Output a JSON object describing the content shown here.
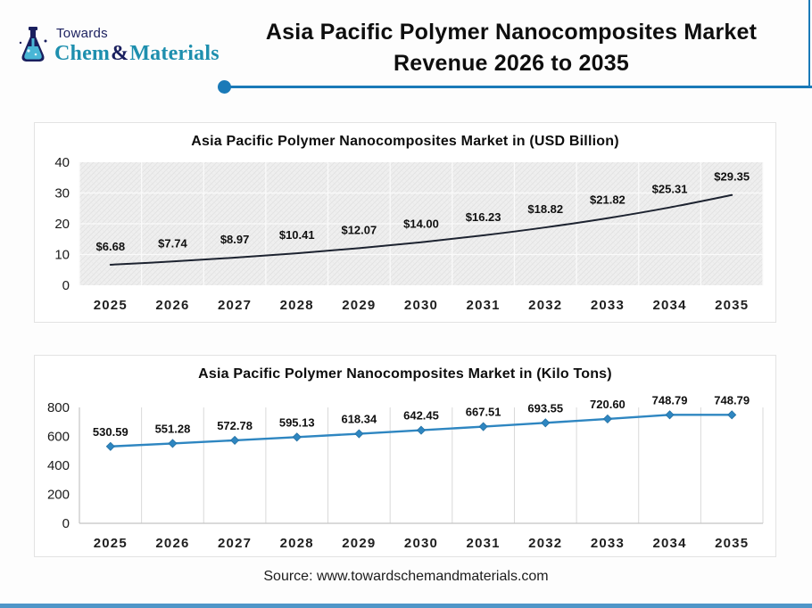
{
  "header": {
    "logo": {
      "towards": "Towards",
      "chem": "Chem",
      "amp": "&",
      "materials": "Materials"
    },
    "title_line1": "Asia Pacific Polymer Nanocomposites Market",
    "title_line2": "Revenue 2026 to 2035"
  },
  "footer": {
    "source": "Source: www.towardschemandmaterials.com"
  },
  "colors": {
    "accent_blue": "#1a7ab8",
    "bottom_bar": "#4f96c8",
    "brand_navy": "#1a1f5e",
    "brand_teal": "#1e8fae",
    "revenue_line": "#1d2330",
    "volume_line": "#2e86c1"
  },
  "chart_data": [
    {
      "type": "line",
      "title": "Asia Pacific Polymer Nanocomposites Market in (USD Billion)",
      "categories": [
        "2025",
        "2026",
        "2027",
        "2028",
        "2029",
        "2030",
        "2031",
        "2032",
        "2033",
        "2034",
        "2035"
      ],
      "values": [
        6.68,
        7.74,
        8.97,
        10.41,
        12.07,
        14.0,
        16.23,
        18.82,
        21.82,
        25.31,
        29.35
      ],
      "labels": [
        "$6.68",
        "$7.74",
        "$8.97",
        "$10.41",
        "$12.07",
        "$14.00",
        "$16.23",
        "$18.82",
        "$21.82",
        "$25.31",
        "$29.35"
      ],
      "xlabel": "",
      "ylabel": "",
      "ylim": [
        0,
        40
      ],
      "yticks": [
        0,
        10,
        20,
        30,
        40
      ],
      "line_color": "#1d2330",
      "markers": false,
      "smooth": true,
      "plot_style": "hatch",
      "grid": "both-light",
      "legend": "none"
    },
    {
      "type": "line",
      "title": "Asia Pacific Polymer Nanocomposites Market in (Kilo Tons)",
      "categories": [
        "2025",
        "2026",
        "2027",
        "2028",
        "2029",
        "2030",
        "2031",
        "2032",
        "2033",
        "2034",
        "2035"
      ],
      "values": [
        530.59,
        551.28,
        572.78,
        595.13,
        618.34,
        642.45,
        667.51,
        693.55,
        720.6,
        748.79,
        748.79
      ],
      "labels": [
        "530.59",
        "551.28",
        "572.78",
        "595.13",
        "618.34",
        "642.45",
        "667.51",
        "693.55",
        "720.60",
        "748.79",
        "748.79"
      ],
      "xlabel": "",
      "ylabel": "",
      "ylim": [
        0,
        800
      ],
      "yticks": [
        0,
        200,
        400,
        600,
        800
      ],
      "line_color": "#2e86c1",
      "markers": true,
      "smooth": false,
      "plot_style": "plain",
      "grid": "vertical",
      "legend": "none"
    }
  ]
}
